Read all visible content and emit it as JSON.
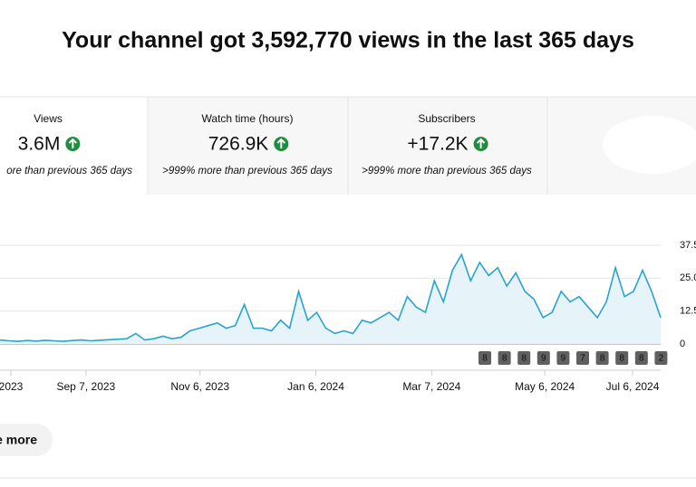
{
  "title": "Your channel got 3,592,770 views in the last 365 days",
  "cards": [
    {
      "label": "Views",
      "value": "3.6M",
      "note": "ore than previous 365 days"
    },
    {
      "label": "Watch time (hours)",
      "value": "726.9K",
      "note": ">999% more than previous 365 days"
    },
    {
      "label": "Subscribers",
      "value": "+17.2K",
      "note": ">999% more than previous 365 days"
    }
  ],
  "button": "e more",
  "chart_data": {
    "type": "line",
    "color": "#2aa3cf",
    "fill": "#e6f3f9",
    "values": [
      1.5,
      1.2,
      1.0,
      1.3,
      1.1,
      1.4,
      1.2,
      1.0,
      1.3,
      1.5,
      1.2,
      1.4,
      1.6,
      1.8,
      2.0,
      4,
      1.5,
      2,
      3,
      2,
      2.5,
      5,
      6,
      7,
      8,
      6,
      7,
      15,
      6,
      6,
      5,
      9,
      6,
      20,
      9,
      12,
      6,
      4,
      5,
      4,
      9,
      8,
      10,
      12,
      9,
      18,
      14,
      12,
      24,
      16,
      28,
      34,
      24,
      31,
      26,
      29,
      22,
      27,
      20,
      17,
      10,
      12,
      20,
      16,
      18,
      14,
      10,
      16,
      29,
      18,
      20,
      28,
      20,
      10
    ],
    "xticks": [
      {
        "value": 1.2,
        "label": "2023"
      },
      {
        "value": 9.5,
        "label": "Sep 7, 2023"
      },
      {
        "value": 22.1,
        "label": "Nov 6, 2023"
      },
      {
        "value": 34.9,
        "label": "Jan 6, 2024"
      },
      {
        "value": 47.7,
        "label": "Mar 7, 2024"
      },
      {
        "value": 60.2,
        "label": "May 6, 2024"
      },
      {
        "value": 69.9,
        "label": "Jul 6, 2024"
      }
    ],
    "ylim": [
      0,
      37.5
    ],
    "yticks": [
      0,
      {
        "value": 12.5,
        "label": "12.5"
      },
      {
        "value": 25,
        "label": "25.0"
      },
      {
        "value": 37.5,
        "label": "37.5"
      }
    ],
    "grid": true,
    "annotations": [
      "8",
      "8",
      "8",
      "9",
      "9",
      "7",
      "8",
      "8",
      "8",
      "2"
    ]
  }
}
